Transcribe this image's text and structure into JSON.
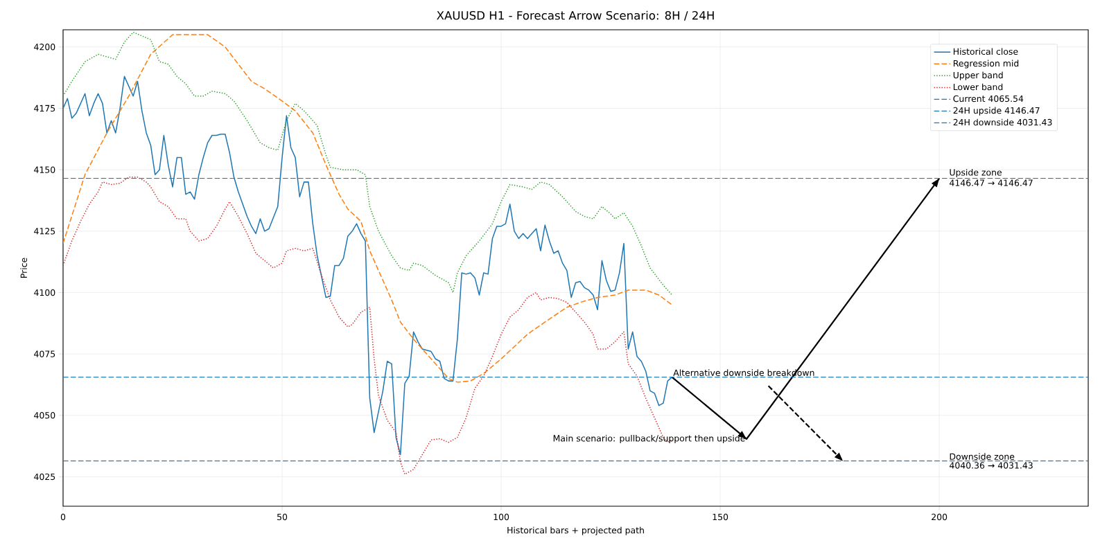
{
  "chart_data": {
    "type": "line",
    "title": "XAUUSD H1 - Forecast Arrow Scenario: 8H / 24H",
    "xlabel": "Historical bars + projected path",
    "ylabel": "Price",
    "xlim": [
      0,
      234
    ],
    "ylim": [
      4013,
      4207
    ],
    "xticks": [
      0,
      50,
      100,
      150,
      200
    ],
    "yticks": [
      4025,
      4050,
      4075,
      4100,
      4125,
      4150,
      4175,
      4200
    ],
    "grid": true,
    "legend": "top right",
    "marker": "none",
    "series": [
      {
        "name": "Historical close",
        "color": "#1f77b4",
        "line_style": "solid",
        "x": [
          0,
          1,
          2,
          3,
          5,
          6,
          7,
          8,
          9,
          10,
          11,
          12,
          13,
          14,
          15,
          16,
          17,
          18,
          19,
          20,
          21,
          22,
          23,
          24,
          25,
          26,
          27,
          28,
          29,
          30,
          31,
          32,
          33,
          34,
          35,
          36,
          37,
          38,
          39,
          40,
          42,
          43,
          44,
          45,
          46,
          47,
          49,
          50,
          51,
          52,
          53,
          54,
          55,
          56,
          57,
          58,
          60,
          61,
          62,
          63,
          64,
          65,
          66,
          67,
          68,
          69,
          70,
          71,
          73,
          74,
          75,
          76,
          77,
          78,
          79,
          80,
          81,
          82,
          84,
          85,
          86,
          87,
          88,
          89,
          90,
          91,
          92,
          93,
          94,
          95,
          96,
          97,
          98,
          99,
          100,
          101,
          102,
          103,
          104,
          105,
          106,
          107,
          108,
          109,
          110,
          111,
          112,
          113,
          114,
          115,
          116,
          117,
          118,
          119,
          120,
          121,
          122,
          123,
          124,
          125,
          126,
          127,
          128,
          129,
          130,
          131,
          132,
          133,
          134,
          135,
          136,
          137,
          138,
          139
        ],
        "values": [
          4175,
          4179,
          4171,
          4173,
          4181,
          4172,
          4177,
          4181,
          4177,
          4165,
          4170,
          4165,
          4175,
          4188,
          4184,
          4180,
          4186,
          4174,
          4165,
          4160,
          4148,
          4150,
          4164,
          4152,
          4143,
          4155,
          4155,
          4140,
          4141,
          4138,
          4148,
          4155,
          4161,
          4164,
          4164,
          4164.5,
          4164.5,
          4157,
          4147,
          4141,
          4131,
          4127,
          4124,
          4130,
          4125,
          4126,
          4135,
          4155,
          4172,
          4159,
          4155,
          4139,
          4145,
          4145,
          4128,
          4115,
          4098,
          4098.5,
          4111,
          4111,
          4114,
          4123,
          4125,
          4128,
          4124,
          4121,
          4057,
          4043,
          4060,
          4072,
          4071,
          4041,
          4034,
          4063,
          4066,
          4084,
          4080,
          4077,
          4076,
          4073,
          4072,
          4065,
          4064,
          4064,
          4081,
          4108,
          4107.5,
          4108,
          4106,
          4099,
          4108,
          4107.5,
          4122,
          4127,
          4127,
          4128,
          4136,
          4125,
          4122,
          4124,
          4122,
          4124,
          4126,
          4117,
          4127.5,
          4121,
          4116,
          4117,
          4112,
          4109,
          4098,
          4104,
          4104.5,
          4102,
          4101,
          4099,
          4093,
          4113,
          4105,
          4100.5,
          4101,
          4108,
          4120,
          4077,
          4084,
          4074,
          4072,
          4068,
          4060,
          4059,
          4054,
          4055,
          4064,
          4065.54
        ]
      },
      {
        "name": "Regression mid",
        "color": "#ff7f0e",
        "line_style": "dashed",
        "x": [
          0,
          5,
          10,
          15,
          20,
          25,
          27,
          30,
          33,
          37,
          40,
          43,
          46,
          50,
          53,
          57,
          60,
          63,
          65,
          68,
          70,
          73,
          75,
          77,
          80,
          85,
          88,
          90,
          93,
          96,
          100,
          103,
          106,
          110,
          115,
          118,
          122,
          126,
          129,
          133,
          136,
          139
        ],
        "values": [
          4120,
          4148,
          4165,
          4180,
          4197,
          4205,
          null,
          null,
          4205,
          4200,
          4193,
          4186,
          4183,
          4178,
          4174,
          4165,
          4152,
          4140,
          4134,
          4129,
          4117,
          4105,
          4097,
          4088,
          4081,
          4071,
          4065,
          4063.5,
          4064,
          4067,
          4073,
          4078,
          4083,
          4088,
          4094,
          4096,
          4098,
          4099,
          4101,
          4101,
          4099,
          4095
        ]
      },
      {
        "name": "Upper band",
        "color": "#2ca02c",
        "line_style": "dotted",
        "x": [
          0,
          2,
          5,
          8,
          10,
          12,
          14,
          16,
          18,
          20,
          22,
          24,
          26,
          28,
          30,
          32,
          34,
          37,
          39,
          42,
          45,
          47,
          49,
          51,
          53,
          55,
          58,
          60,
          61,
          64,
          67,
          69,
          70,
          72,
          75,
          77,
          79,
          80,
          82,
          85,
          88,
          89,
          90,
          92,
          95,
          98,
          100,
          102,
          105,
          107,
          109,
          111,
          114,
          117,
          119,
          121,
          123,
          125,
          126,
          128,
          130,
          132,
          134,
          137,
          139
        ],
        "values": [
          4180,
          4186,
          4194,
          4197,
          4196,
          4195,
          4202,
          4206,
          null,
          4203,
          4194,
          4193,
          4188,
          4185,
          4180,
          4180,
          4182,
          4181,
          4178,
          4170,
          4161,
          4159,
          4158,
          4170,
          4177,
          4174,
          4168,
          4156,
          4151,
          4150,
          4150,
          4148,
          4135,
          4125,
          4115,
          4110,
          4109,
          4112,
          4111,
          4107,
          4104,
          4100,
          4108,
          4115,
          4121,
          4128,
          4137,
          4144,
          4143,
          4142,
          4145,
          4144,
          4139,
          4133,
          4131,
          4130,
          4135,
          4132,
          4130,
          4132.5,
          4127,
          4119,
          4110,
          4103,
          4099
        ]
      },
      {
        "name": "Lower band",
        "color": "#d62728",
        "line_style": "dotted",
        "x": [
          0,
          2,
          4,
          6,
          8,
          9,
          11,
          13,
          15,
          17,
          19,
          20,
          22,
          24,
          26,
          28,
          29,
          31,
          33,
          35,
          37,
          38,
          40,
          42,
          44,
          46,
          48,
          50,
          51,
          53,
          55,
          57,
          59,
          61,
          63,
          65,
          66,
          68,
          70,
          71,
          72,
          74,
          76,
          77,
          78,
          80,
          82,
          84,
          86,
          88,
          90,
          92,
          94,
          96,
          98,
          100,
          102,
          104,
          106,
          108,
          109,
          111,
          113,
          115,
          117,
          119,
          121,
          122,
          124,
          126,
          128,
          129,
          131,
          133,
          135,
          137,
          138,
          139
        ],
        "values": [
          4111,
          4121,
          4129,
          4136,
          4141,
          4145,
          4144,
          4144.5,
          4147,
          4147,
          4145,
          4143,
          4137,
          4135,
          4130,
          4130,
          4125,
          4121,
          4122,
          4127,
          4134,
          4137,
          4131,
          4124,
          4116,
          4113,
          4110,
          4112,
          4117,
          4118,
          4117,
          4118,
          4107,
          4097,
          4090,
          4086,
          4087,
          4092,
          4094,
          4073,
          4058,
          4048,
          4043,
          4031,
          4026,
          4028,
          4034,
          4040,
          4040.5,
          4039,
          4041,
          4049,
          4061,
          4066,
          4074,
          4083,
          4090,
          4093,
          4098,
          4100,
          4097,
          4098,
          4097.5,
          4096,
          4092,
          4088,
          4083,
          4077,
          4077,
          4080,
          4084,
          4071,
          4066,
          4057,
          4049,
          4041,
          4039,
          4040
        ]
      },
      {
        "color": "#000000",
        "line_style": "solid",
        "x": [
          139,
          156,
          200
        ],
        "values": [
          4065.54,
          4040.36,
          4146.47
        ]
      },
      {
        "color": "#000000",
        "line_style": "dashed",
        "x": [
          161,
          178
        ],
        "values": [
          4062,
          4031.43
        ]
      }
    ],
    "ref_lines": [
      {
        "axis": "y",
        "value": 4065.54,
        "label": "Current 4065.54",
        "color": "#1f77b4",
        "line_style": "dashed"
      },
      {
        "axis": "y",
        "value": 4146.47,
        "label": "24H upside 4146.47",
        "color": "#1f77b4",
        "line_style": "dashed"
      },
      {
        "axis": "y",
        "value": 4031.43,
        "label": "24H downside 4031.43",
        "color": "#1f77b4",
        "line_style": "dashed"
      }
    ],
    "annotations": [
      {
        "text": "Alternative downside breakdown",
        "x": 139,
        "y": 4065.54
      },
      {
        "text": "Main scenario: pullback/support then upside",
        "x": 156,
        "y": 4040.36
      },
      {
        "text": "Upside zone",
        "x": 202,
        "y": 4146.47
      },
      {
        "text": "4146.47 → 4146.47",
        "x": 202,
        "y": 4146.47
      },
      {
        "text": "Downside zone",
        "x": 202,
        "y": 4031.43
      },
      {
        "text": "4040.36 → 4031.43",
        "x": 202,
        "y": 4031.43
      }
    ]
  }
}
